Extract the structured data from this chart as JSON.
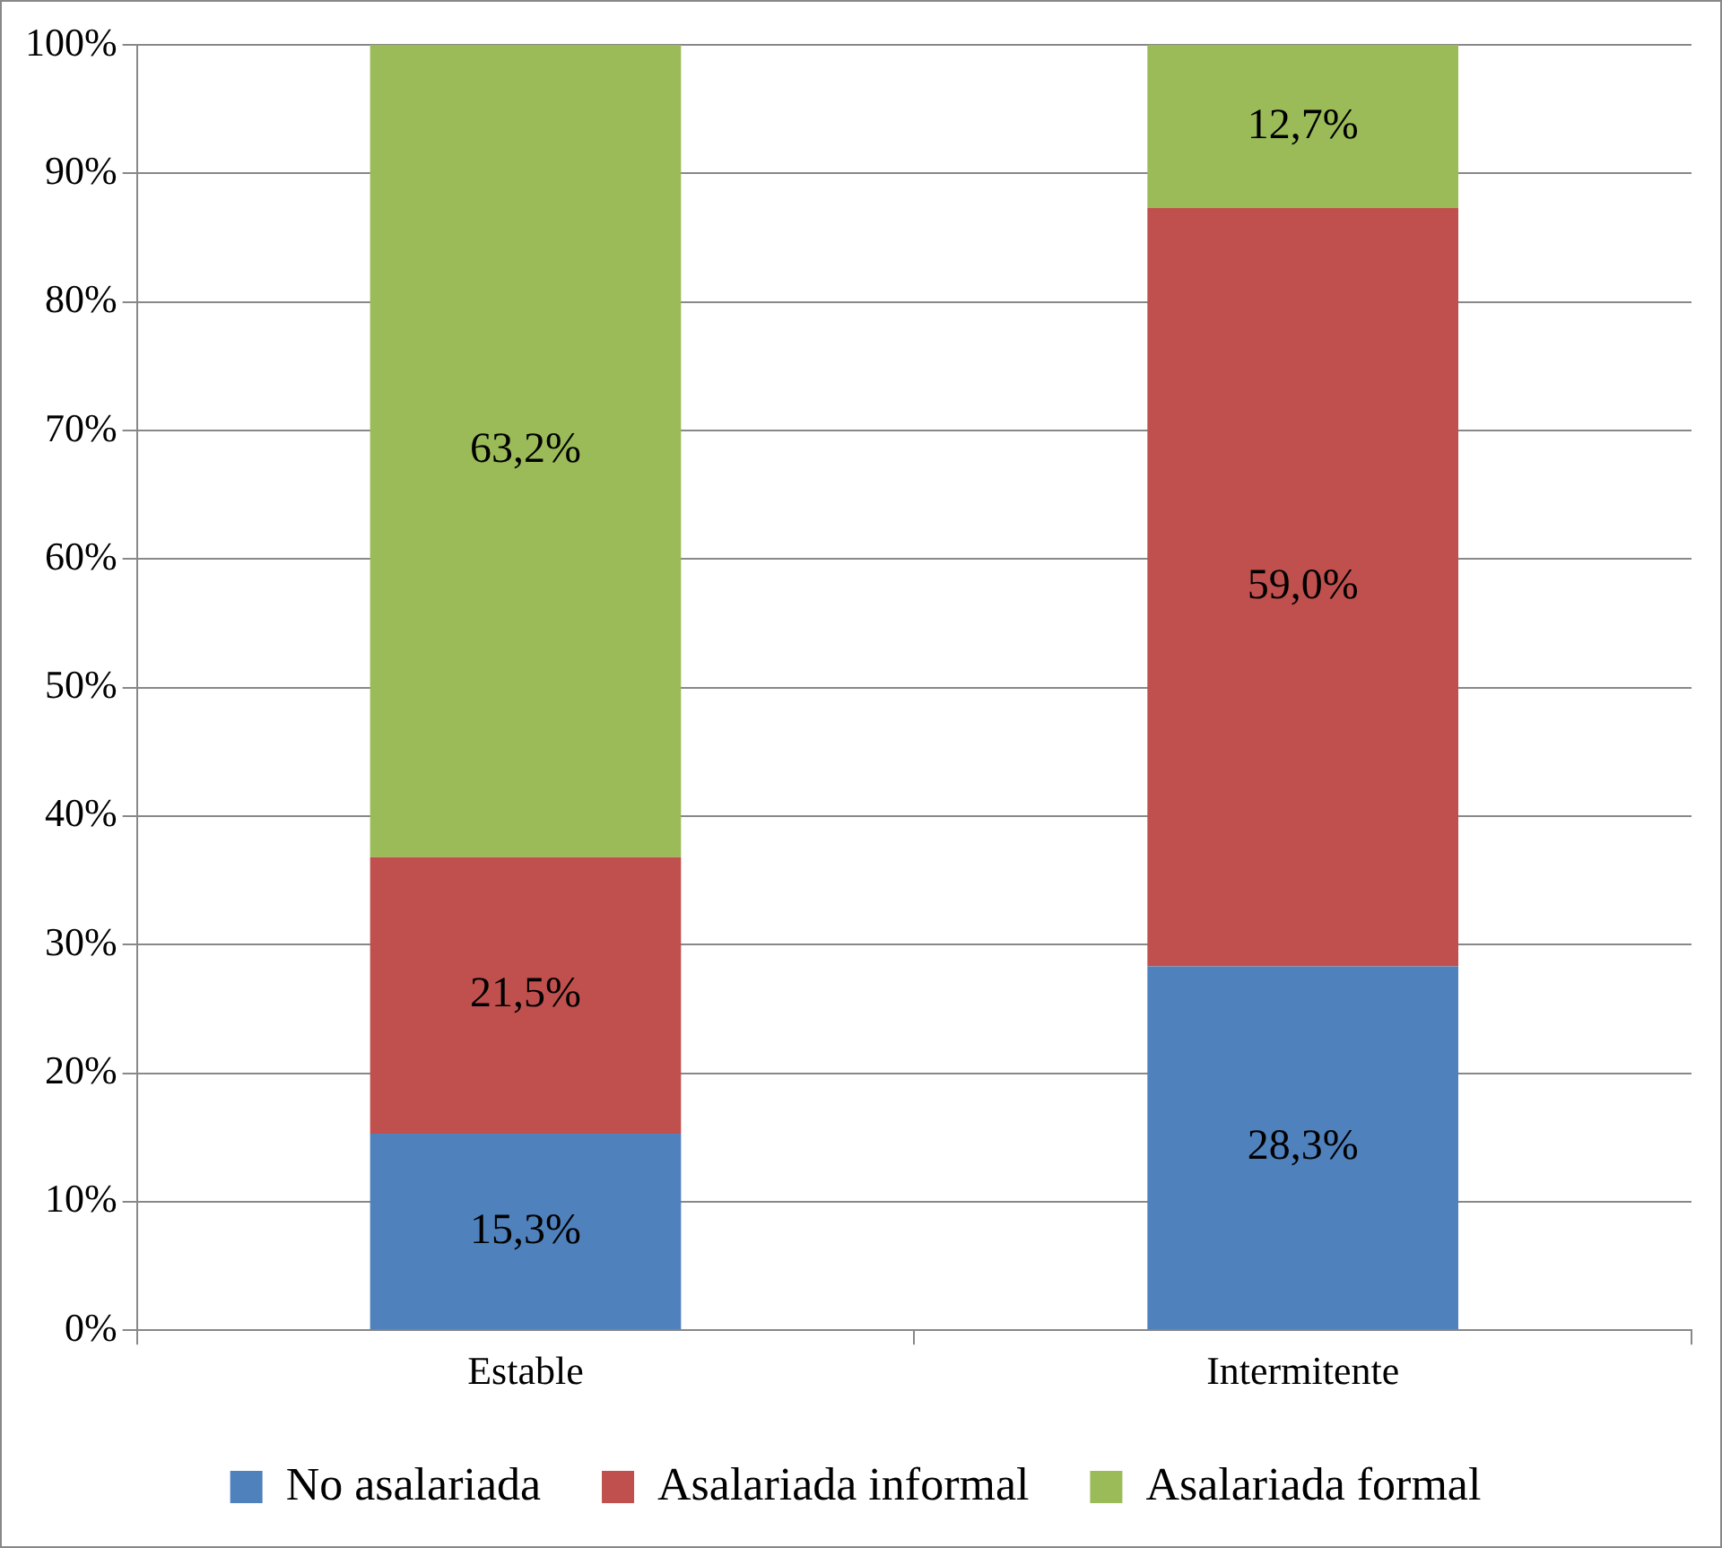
{
  "chart_data": {
    "type": "bar",
    "stacked": true,
    "categories": [
      "Estable",
      "Intermitente"
    ],
    "series": [
      {
        "name": "No asalariada",
        "color": "#4f81bd",
        "values": [
          15.3,
          28.3
        ],
        "value_labels": [
          "15,3%",
          "28,3%"
        ]
      },
      {
        "name": "Asalariada informal",
        "color": "#c0504d",
        "values": [
          21.5,
          59.0
        ],
        "value_labels": [
          "21,5%",
          "59,0%"
        ]
      },
      {
        "name": "Asalariada formal",
        "color": "#9bbb59",
        "values": [
          63.2,
          12.7
        ],
        "value_labels": [
          "63,2%",
          "12,7%"
        ]
      }
    ],
    "ylim": [
      0,
      100
    ],
    "yticks": [
      {
        "value": 0,
        "label": "0%"
      },
      {
        "value": 10,
        "label": "10%"
      },
      {
        "value": 20,
        "label": "20%"
      },
      {
        "value": 30,
        "label": "30%"
      },
      {
        "value": 40,
        "label": "40%"
      },
      {
        "value": 50,
        "label": "50%"
      },
      {
        "value": 60,
        "label": "60%"
      },
      {
        "value": 70,
        "label": "70%"
      },
      {
        "value": 80,
        "label": "80%"
      },
      {
        "value": 90,
        "label": "90%"
      },
      {
        "value": 100,
        "label": "100%"
      }
    ],
    "grid": "y",
    "legend": "bottom"
  }
}
